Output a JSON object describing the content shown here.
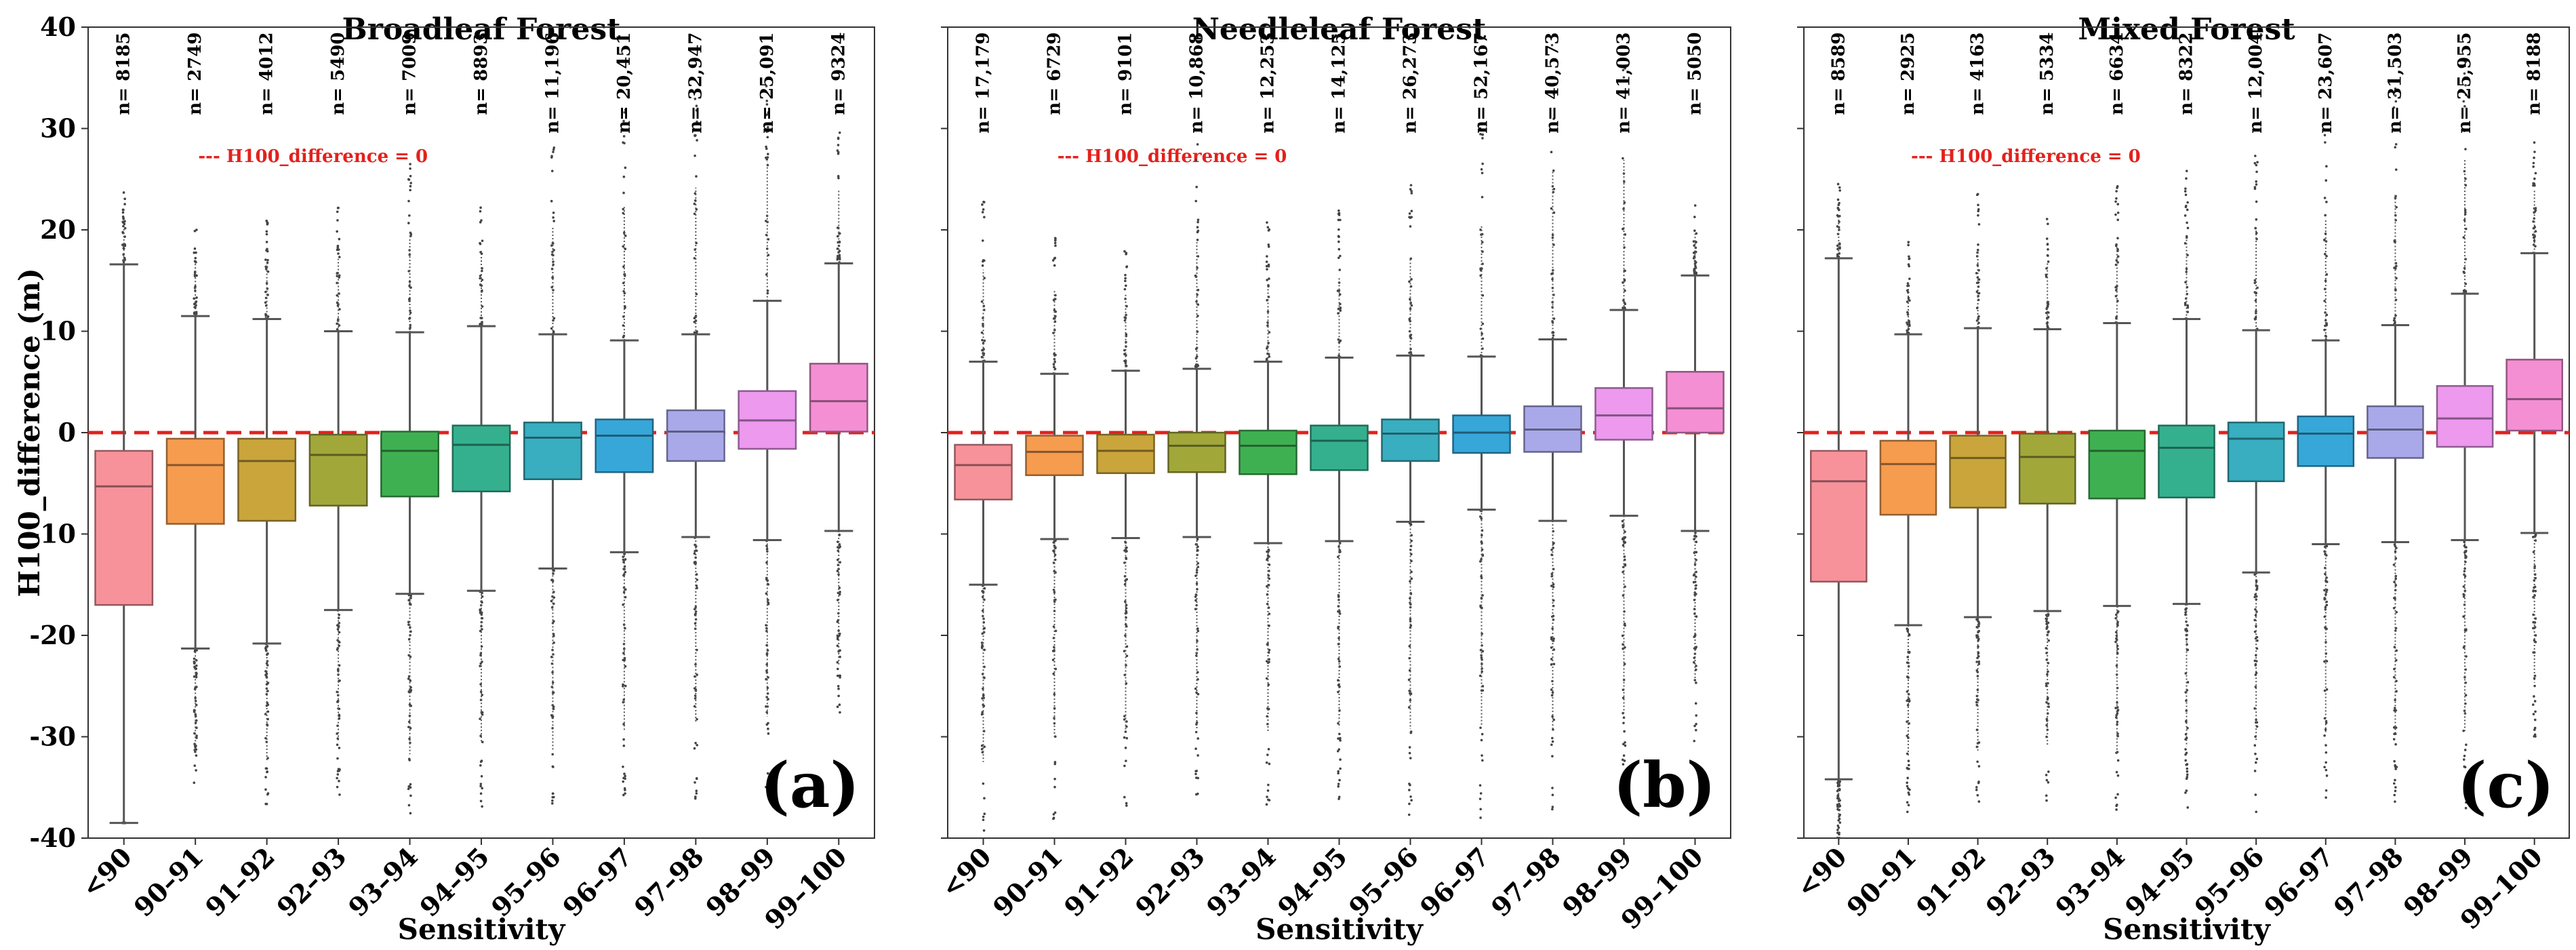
{
  "chart_data": {
    "type": "box",
    "shared": {
      "xlabel": "Sensitivity",
      "ylabel": "H100_difference (m)",
      "ylim": [
        -40,
        40
      ],
      "yticks": [
        -40,
        -30,
        -20,
        -10,
        0,
        10,
        20,
        30,
        40
      ],
      "categories": [
        "<90",
        "90–91",
        "91–92",
        "92–93",
        "93–94",
        "94–95",
        "95–96",
        "96–97",
        "97–98",
        "98–99",
        "99–100"
      ],
      "colors": [
        "#f7929b",
        "#f59c4f",
        "#c9a53c",
        "#a2a73a",
        "#3fb052",
        "#35b08f",
        "#38aec0",
        "#36a7d8",
        "#a9a9ea",
        "#ec99ee",
        "#f48fd4"
      ],
      "reference_line": {
        "y": 0,
        "label": "--- H100_difference = 0",
        "color": "#e3211c"
      }
    },
    "panels": [
      {
        "title": "Broadleaf Forest",
        "panel_label": "(a)",
        "n_labels": [
          "n= 8185",
          "n= 2749",
          "n= 4012",
          "n= 5490",
          "n= 7009",
          "n= 8893",
          "n= 11,196",
          "n= 20,451",
          "n= 32,947",
          "n= 25,091",
          "n= 9324"
        ],
        "boxes": [
          {
            "whislo": -38.5,
            "q1": -17,
            "med": -5.3,
            "q3": -1.8,
            "whishi": 16.6,
            "flier_lo": -38.5,
            "flier_hi": 24
          },
          {
            "whislo": -21.3,
            "q1": -9,
            "med": -3.2,
            "q3": -0.6,
            "whishi": 11.5,
            "flier_lo": -35,
            "flier_hi": 21
          },
          {
            "whislo": -20.8,
            "q1": -8.7,
            "med": -2.8,
            "q3": -0.6,
            "whishi": 11.2,
            "flier_lo": -37.5,
            "flier_hi": 21
          },
          {
            "whislo": -17.5,
            "q1": -7.2,
            "med": -2.2,
            "q3": -0.2,
            "whishi": 10,
            "flier_lo": -36,
            "flier_hi": 23
          },
          {
            "whislo": -15.9,
            "q1": -6.3,
            "med": -1.8,
            "q3": 0.1,
            "whishi": 9.9,
            "flier_lo": -38.5,
            "flier_hi": 27
          },
          {
            "whislo": -15.6,
            "q1": -5.8,
            "med": -1.2,
            "q3": 0.7,
            "whishi": 10.5,
            "flier_lo": -37,
            "flier_hi": 24
          },
          {
            "whislo": -13.4,
            "q1": -4.6,
            "med": -0.5,
            "q3": 1,
            "whishi": 9.7,
            "flier_lo": -39,
            "flier_hi": 29
          },
          {
            "whislo": -11.8,
            "q1": -3.9,
            "med": -0.3,
            "q3": 1.3,
            "whishi": 9.1,
            "flier_lo": -37,
            "flier_hi": 33
          },
          {
            "whislo": -10.3,
            "q1": -2.8,
            "med": 0.1,
            "q3": 2.2,
            "whishi": 9.7,
            "flier_lo": -36.5,
            "flier_hi": 36
          },
          {
            "whislo": -10.6,
            "q1": -1.6,
            "med": 1.2,
            "q3": 4.1,
            "whishi": 13,
            "flier_lo": -35.5,
            "flier_hi": 38
          },
          {
            "whislo": -9.7,
            "q1": 0.1,
            "med": 3.1,
            "q3": 6.8,
            "whishi": 16.7,
            "flier_lo": -28.5,
            "flier_hi": 30
          }
        ]
      },
      {
        "title": "Needleleaf Forest",
        "panel_label": "(b)",
        "n_labels": [
          "n= 17,179",
          "n= 6729",
          "n= 9101",
          "n= 10,868",
          "n= 12,253",
          "n= 14,125",
          "n= 26,273",
          "n= 52,167",
          "n= 40,573",
          "n= 41,003",
          "n= 5050"
        ],
        "boxes": [
          {
            "whislo": -15,
            "q1": -6.6,
            "med": -3.2,
            "q3": -1.2,
            "whishi": 7,
            "flier_lo": -40,
            "flier_hi": 23.5
          },
          {
            "whislo": -10.5,
            "q1": -4.2,
            "med": -1.9,
            "q3": -0.3,
            "whishi": 5.8,
            "flier_lo": -38.5,
            "flier_hi": 21
          },
          {
            "whislo": -10.4,
            "q1": -4,
            "med": -1.8,
            "q3": -0.2,
            "whishi": 6.1,
            "flier_lo": -37.5,
            "flier_hi": 20
          },
          {
            "whislo": -10.3,
            "q1": -3.9,
            "med": -1.3,
            "q3": 0,
            "whishi": 6.3,
            "flier_lo": -37.5,
            "flier_hi": 29
          },
          {
            "whislo": -10.9,
            "q1": -4.1,
            "med": -1.3,
            "q3": 0.2,
            "whishi": 7,
            "flier_lo": -37.5,
            "flier_hi": 21
          },
          {
            "whislo": -10.7,
            "q1": -3.7,
            "med": -0.8,
            "q3": 0.7,
            "whishi": 7.4,
            "flier_lo": -37,
            "flier_hi": 22
          },
          {
            "whislo": -8.8,
            "q1": -2.8,
            "med": -0.1,
            "q3": 1.3,
            "whishi": 7.6,
            "flier_lo": -38,
            "flier_hi": 25
          },
          {
            "whislo": -7.6,
            "q1": -2,
            "med": 0,
            "q3": 1.7,
            "whishi": 7.5,
            "flier_lo": -38,
            "flier_hi": 31
          },
          {
            "whislo": -8.7,
            "q1": -1.9,
            "med": 0.3,
            "q3": 2.6,
            "whishi": 9.2,
            "flier_lo": -38,
            "flier_hi": 39.5
          },
          {
            "whislo": -8.2,
            "q1": -0.7,
            "med": 1.7,
            "q3": 4.4,
            "whishi": 12.1,
            "flier_lo": -36,
            "flier_hi": 39
          },
          {
            "whislo": -9.7,
            "q1": 0,
            "med": 2.4,
            "q3": 6,
            "whishi": 15.5,
            "flier_lo": -30.5,
            "flier_hi": 23
          }
        ]
      },
      {
        "title": "Mixed Forest",
        "panel_label": "(c)",
        "n_labels": [
          "n= 8589",
          "n= 2925",
          "n= 4163",
          "n= 5334",
          "n= 6634",
          "n= 8322",
          "n= 12,004",
          "n= 23,607",
          "n= 31,503",
          "n= 25,955",
          "n= 8188"
        ],
        "boxes": [
          {
            "whislo": -34.2,
            "q1": -14.7,
            "med": -4.8,
            "q3": -1.8,
            "whishi": 17.2,
            "flier_lo": -40,
            "flier_hi": 25
          },
          {
            "whislo": -19,
            "q1": -8.1,
            "med": -3.1,
            "q3": -0.8,
            "whishi": 9.7,
            "flier_lo": -37.5,
            "flier_hi": 19
          },
          {
            "whislo": -18.2,
            "q1": -7.4,
            "med": -2.5,
            "q3": -0.3,
            "whishi": 10.3,
            "flier_lo": -37,
            "flier_hi": 24
          },
          {
            "whislo": -17.6,
            "q1": -7,
            "med": -2.4,
            "q3": -0.1,
            "whishi": 10.2,
            "flier_lo": -36.5,
            "flier_hi": 22
          },
          {
            "whislo": -17.1,
            "q1": -6.5,
            "med": -1.8,
            "q3": 0.2,
            "whishi": 10.8,
            "flier_lo": -38,
            "flier_hi": 24.5
          },
          {
            "whislo": -16.9,
            "q1": -6.4,
            "med": -1.5,
            "q3": 0.7,
            "whishi": 11.2,
            "flier_lo": -37,
            "flier_hi": 26
          },
          {
            "whislo": -13.8,
            "q1": -4.8,
            "med": -0.6,
            "q3": 1,
            "whishi": 10.1,
            "flier_lo": -37.5,
            "flier_hi": 28
          },
          {
            "whislo": -11,
            "q1": -3.3,
            "med": -0.1,
            "q3": 1.6,
            "whishi": 9.1,
            "flier_lo": -37.5,
            "flier_hi": 31
          },
          {
            "whislo": -10.8,
            "q1": -2.5,
            "med": 0.3,
            "q3": 2.6,
            "whishi": 10.6,
            "flier_lo": -38,
            "flier_hi": 34
          },
          {
            "whislo": -10.6,
            "q1": -1.4,
            "med": 1.4,
            "q3": 4.6,
            "whishi": 13.7,
            "flier_lo": -37.5,
            "flier_hi": 38
          },
          {
            "whislo": -9.9,
            "q1": 0.2,
            "med": 3.3,
            "q3": 7.2,
            "whishi": 17.7,
            "flier_lo": -31,
            "flier_hi": 29
          }
        ]
      }
    ]
  }
}
